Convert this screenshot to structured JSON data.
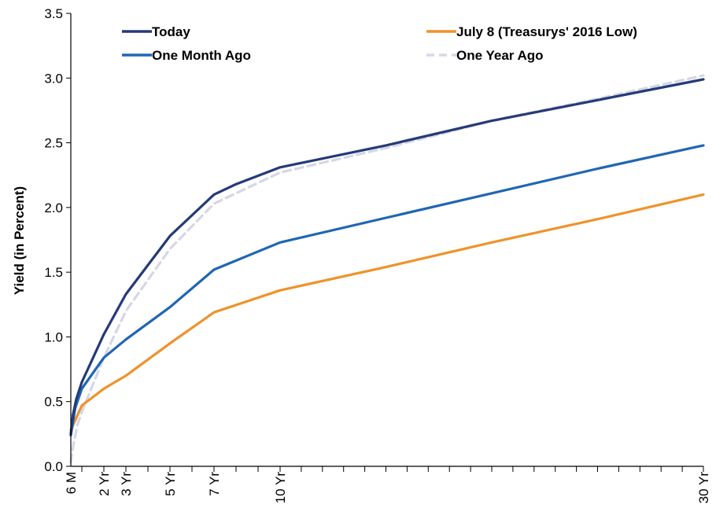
{
  "chart_data": {
    "type": "line",
    "ylabel": "Yield (in Percent)",
    "xlabel": "",
    "ylim": [
      0,
      3.5
    ],
    "yticks": [
      "0.0",
      "0.5",
      "1.0",
      "1.5",
      "2.0",
      "2.5",
      "3.0",
      "3.5"
    ],
    "x_unit": "years to maturity",
    "xlim": [
      0.5,
      30
    ],
    "x_ticks": [
      {
        "x": 0.5,
        "label": "6 M"
      },
      {
        "x": 2,
        "label": "2 Yr"
      },
      {
        "x": 3,
        "label": "3 Yr"
      },
      {
        "x": 5,
        "label": "5 Yr"
      },
      {
        "x": 7,
        "label": "7 Yr"
      },
      {
        "x": 10,
        "label": "10 Yr"
      },
      {
        "x": 30,
        "label": "30 Yr"
      }
    ],
    "x_minor_ticks": [
      1,
      2,
      3,
      4,
      5,
      6,
      7,
      8,
      9,
      10,
      11,
      12,
      13,
      14,
      15,
      16,
      17,
      18,
      19,
      20,
      21,
      22,
      23,
      24,
      25,
      26,
      27,
      28,
      29
    ],
    "grid": false,
    "legend_position": "top",
    "series": [
      {
        "name": "Today",
        "color": "#253a78",
        "dash": "none",
        "points": [
          [
            0.5,
            0.25
          ],
          [
            0.6,
            0.4
          ],
          [
            0.75,
            0.52
          ],
          [
            1,
            0.65
          ],
          [
            2,
            1.02
          ],
          [
            3,
            1.33
          ],
          [
            5,
            1.78
          ],
          [
            7,
            2.1
          ],
          [
            8,
            2.18
          ],
          [
            10,
            2.31
          ],
          [
            15,
            2.48
          ],
          [
            20,
            2.67
          ],
          [
            25,
            2.83
          ],
          [
            30,
            2.99
          ]
        ]
      },
      {
        "name": "One Month Ago",
        "color": "#1f66b3",
        "dash": "none",
        "points": [
          [
            0.5,
            0.24
          ],
          [
            0.7,
            0.45
          ],
          [
            1,
            0.6
          ],
          [
            2,
            0.84
          ],
          [
            3,
            0.98
          ],
          [
            5,
            1.23
          ],
          [
            7,
            1.52
          ],
          [
            10,
            1.73
          ],
          [
            15,
            1.92
          ],
          [
            20,
            2.11
          ],
          [
            25,
            2.3
          ],
          [
            30,
            2.48
          ]
        ]
      },
      {
        "name": "July 8 (Treasurys' 2016 Low)",
        "color": "#f0922b",
        "dash": "none",
        "points": [
          [
            0.5,
            0.28
          ],
          [
            1,
            0.47
          ],
          [
            2,
            0.6
          ],
          [
            3,
            0.7
          ],
          [
            5,
            0.95
          ],
          [
            7,
            1.19
          ],
          [
            10,
            1.36
          ],
          [
            15,
            1.54
          ],
          [
            20,
            1.73
          ],
          [
            25,
            1.91
          ],
          [
            30,
            2.1
          ]
        ]
      },
      {
        "name": "One Year Ago",
        "color": "#d5d7e6",
        "dash": "10 6",
        "points": [
          [
            0.5,
            0.03
          ],
          [
            0.6,
            0.15
          ],
          [
            0.8,
            0.32
          ],
          [
            1,
            0.42
          ],
          [
            2,
            0.84
          ],
          [
            3,
            1.2
          ],
          [
            5,
            1.68
          ],
          [
            7,
            2.03
          ],
          [
            10,
            2.27
          ],
          [
            15,
            2.46
          ],
          [
            20,
            2.67
          ],
          [
            25,
            2.84
          ],
          [
            30,
            3.02
          ]
        ]
      }
    ]
  }
}
